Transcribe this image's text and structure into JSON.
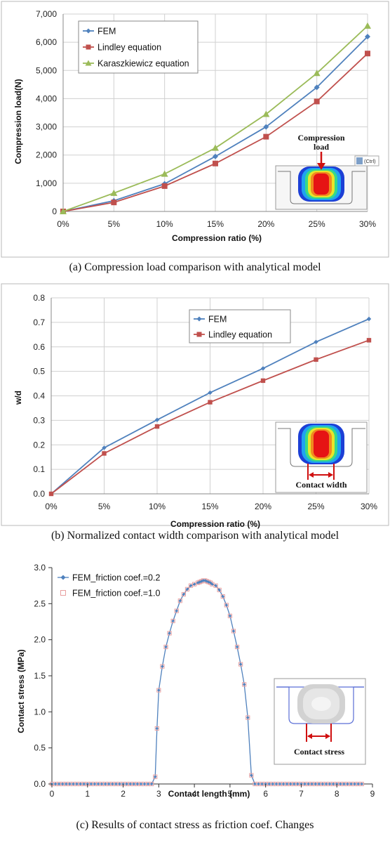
{
  "chart_data": [
    {
      "type": "line",
      "categories": [
        "0%",
        "5%",
        "10%",
        "15%",
        "20%",
        "25%",
        "30%"
      ],
      "series": [
        {
          "name": "FEM",
          "values": [
            0,
            380,
            980,
            1950,
            3000,
            4400,
            6200
          ],
          "color": "#4f81bd",
          "marker": "diamond"
        },
        {
          "name": "Lindley equation",
          "values": [
            0,
            320,
            900,
            1700,
            2650,
            3900,
            5600
          ],
          "color": "#c0504d",
          "marker": "square"
        },
        {
          "name": "Karaszkiewicz equation",
          "values": [
            0,
            650,
            1330,
            2250,
            3450,
            4900,
            6580
          ],
          "color": "#9bbb59",
          "marker": "triangle"
        }
      ],
      "yticks": [
        "0",
        "1,000",
        "2,000",
        "3,000",
        "4,000",
        "5,000",
        "6,000",
        "7,000"
      ],
      "ylim": [
        0,
        7000
      ],
      "xlabel": "Compression ratio (%)",
      "ylabel": "Compression load(N)",
      "legend": "top-left",
      "grid": true,
      "annotation": {
        "title_line1": "Compression",
        "title_line2": "load",
        "paste_tag": "(Ctrl)"
      },
      "caption": "(a) Compression load comparison with analytical model"
    },
    {
      "type": "line",
      "categories": [
        "0%",
        "5%",
        "10%",
        "15%",
        "20%",
        "25%",
        "30%"
      ],
      "series": [
        {
          "name": "FEM",
          "values": [
            0,
            0.188,
            0.302,
            0.413,
            0.512,
            0.62,
            0.714
          ],
          "color": "#4f81bd",
          "marker": "diamond"
        },
        {
          "name": "Lindley equation",
          "values": [
            0,
            0.165,
            0.275,
            0.374,
            0.462,
            0.548,
            0.627
          ],
          "color": "#c0504d",
          "marker": "square"
        }
      ],
      "yticks": [
        "0.0",
        "0.1",
        "0.2",
        "0.3",
        "0.4",
        "0.5",
        "0.6",
        "0.7",
        "0.8"
      ],
      "ylim": [
        0,
        0.8
      ],
      "xlabel": "Compression ratio (%)",
      "ylabel": "w/d",
      "legend": "top-right",
      "grid": true,
      "annotation": {
        "label": "Contact width"
      },
      "caption": "(b) Normalized contact width comparison with analytical model"
    },
    {
      "type": "scatter",
      "series": [
        {
          "name": "FEM_friction coef.=0.2",
          "color": "#4f81bd",
          "marker": "diamond"
        },
        {
          "name": "FEM_friction coef.=1.0",
          "color": "#e8a0a0",
          "marker": "open-square"
        }
      ],
      "x": [
        0,
        0.1,
        0.2,
        0.3,
        0.4,
        0.5,
        0.6,
        0.7,
        0.8,
        0.9,
        1.0,
        1.1,
        1.2,
        1.3,
        1.4,
        1.5,
        1.6,
        1.7,
        1.8,
        1.9,
        2.0,
        2.1,
        2.2,
        2.3,
        2.4,
        2.5,
        2.6,
        2.7,
        2.8,
        2.9,
        2.95,
        3.0,
        3.1,
        3.2,
        3.3,
        3.4,
        3.5,
        3.6,
        3.7,
        3.8,
        3.9,
        4.0,
        4.1,
        4.15,
        4.2,
        4.25,
        4.3,
        4.35,
        4.4,
        4.45,
        4.5,
        4.6,
        4.7,
        4.8,
        4.9,
        5.0,
        5.1,
        5.2,
        5.3,
        5.4,
        5.5,
        5.6,
        5.7,
        5.8,
        5.9,
        6.0,
        6.1,
        6.2,
        6.3,
        6.4,
        6.5,
        6.6,
        6.7,
        6.8,
        6.9,
        7.0,
        7.1,
        7.2,
        7.3,
        7.4,
        7.5,
        7.6,
        7.7,
        7.8,
        7.9,
        8.0,
        8.1,
        8.2,
        8.3,
        8.4,
        8.5,
        8.6,
        8.7
      ],
      "y": [
        0,
        0,
        0,
        0,
        0,
        0,
        0,
        0,
        0,
        0,
        0,
        0,
        0,
        0,
        0,
        0,
        0,
        0,
        0,
        0,
        0,
        0,
        0,
        0,
        0,
        0,
        0,
        0,
        0,
        0.1,
        0.77,
        1.3,
        1.63,
        1.9,
        2.09,
        2.26,
        2.4,
        2.54,
        2.63,
        2.7,
        2.75,
        2.77,
        2.79,
        2.8,
        2.81,
        2.82,
        2.82,
        2.81,
        2.8,
        2.79,
        2.77,
        2.75,
        2.69,
        2.6,
        2.48,
        2.33,
        2.12,
        1.9,
        1.66,
        1.38,
        0.92,
        0.12,
        0,
        0,
        0,
        0,
        0,
        0,
        0,
        0,
        0,
        0,
        0,
        0,
        0,
        0,
        0,
        0,
        0,
        0,
        0,
        0,
        0,
        0,
        0,
        0,
        0,
        0,
        0,
        0,
        0,
        0,
        0
      ],
      "xticks": [
        "0",
        "1",
        "2",
        "3",
        "4",
        "5",
        "6",
        "7",
        "8",
        "9"
      ],
      "yticks": [
        "0.0",
        "0.5",
        "1.0",
        "1.5",
        "2.0",
        "2.5",
        "3.0"
      ],
      "xlim": [
        0,
        9
      ],
      "ylim": [
        0,
        3
      ],
      "xlabel": "Contact length (mm)",
      "ylabel": "Contact stress (MPa)",
      "legend": "top-left",
      "grid": false,
      "annotation": {
        "label": "Contact stress"
      },
      "caption": "(c) Results of contact stress as friction coef. Changes"
    }
  ]
}
